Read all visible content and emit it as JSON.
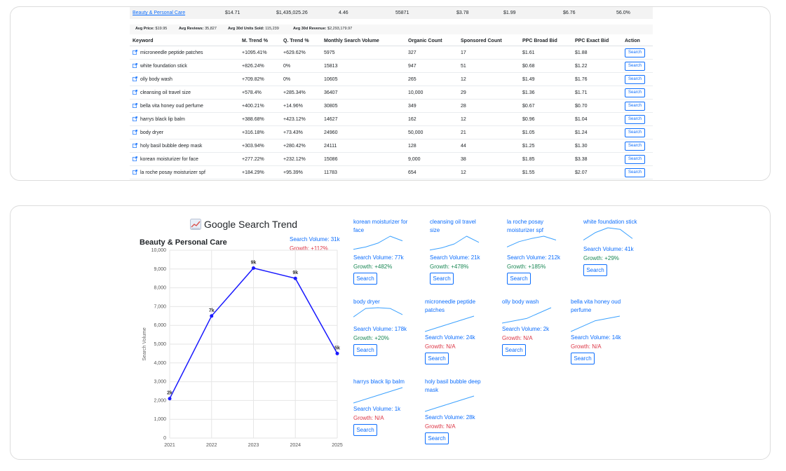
{
  "category_row": {
    "name": "Beauty & Personal Care",
    "price": "$14.71",
    "revenue": "$1,435,025.26",
    "rating": "4.46",
    "units": "55871",
    "val1": "$3.78",
    "val2": "$1.99",
    "val3": "$6.76",
    "pct": "56.0%"
  },
  "averages": {
    "price_label": "Avg Price:",
    "price": "$19.95",
    "reviews_label": "Avg Reviews:",
    "reviews": "35,827",
    "units_label": "Avg 30d Units Sold:",
    "units": "115,239",
    "revenue_label": "Avg 30d Revenue:",
    "revenue": "$2,293,179.97"
  },
  "table": {
    "headers": [
      "Keyword",
      "M. Trend %",
      "Q. Trend %",
      "Monthly Search Volume",
      "Organic Count",
      "Sponsored Count",
      "PPC Broad Bid",
      "PPC Exact Bid",
      "Action"
    ],
    "rows": [
      {
        "keyword": "microneedle peptide patches",
        "m": "+1095.41%",
        "q": "+629.62%",
        "msv": "5975",
        "org": "327",
        "sp": "17",
        "broad": "$1.61",
        "exact": "$1.88",
        "action": "Search"
      },
      {
        "keyword": "white foundation stick",
        "m": "+826.24%",
        "q": "0%",
        "msv": "15813",
        "org": "947",
        "sp": "51",
        "broad": "$0.68",
        "exact": "$1.22",
        "action": "Search"
      },
      {
        "keyword": "olly body wash",
        "m": "+709.82%",
        "q": "0%",
        "msv": "10605",
        "org": "265",
        "sp": "12",
        "broad": "$1.49",
        "exact": "$1.76",
        "action": "Search"
      },
      {
        "keyword": "cleansing oil travel size",
        "m": "+578.4%",
        "q": "+285.34%",
        "msv": "36407",
        "org": "10,000",
        "sp": "29",
        "broad": "$1.36",
        "exact": "$1.71",
        "action": "Search"
      },
      {
        "keyword": "bella vita honey oud perfume",
        "m": "+400.21%",
        "q": "+14.96%",
        "msv": "30805",
        "org": "349",
        "sp": "28",
        "broad": "$0.67",
        "exact": "$0.70",
        "action": "Search"
      },
      {
        "keyword": "harrys black lip balm",
        "m": "+388.68%",
        "q": "+423.12%",
        "msv": "14627",
        "org": "162",
        "sp": "12",
        "broad": "$0.96",
        "exact": "$1.04",
        "action": "Search"
      },
      {
        "keyword": "body dryer",
        "m": "+316.18%",
        "q": "+73.43%",
        "msv": "24960",
        "org": "50,000",
        "sp": "21",
        "broad": "$1.05",
        "exact": "$1.24",
        "action": "Search"
      },
      {
        "keyword": "holy basil bubble deep mask",
        "m": "+303.94%",
        "q": "+280.42%",
        "msv": "24111",
        "org": "128",
        "sp": "44",
        "broad": "$1.25",
        "exact": "$1.30",
        "action": "Search"
      },
      {
        "keyword": "korean moisturizer for face",
        "m": "+277.22%",
        "q": "+232.12%",
        "msv": "15086",
        "org": "9,000",
        "sp": "38",
        "broad": "$1.85",
        "exact": "$3.38",
        "action": "Search"
      },
      {
        "keyword": "la roche posay moisturizer spf",
        "m": "+184.29%",
        "q": "+95.39%",
        "msv": "11783",
        "org": "654",
        "sp": "12",
        "broad": "$1.55",
        "exact": "$2.07",
        "action": "Search"
      }
    ]
  },
  "trend": {
    "title": "Google Search Trend",
    "icon": "chart-increasing-icon",
    "category": "Beauty & Personal Care",
    "search_volume": "Search Volume: 31k",
    "growth": "Growth: +112%",
    "keywords": [
      {
        "name": "korean moisturizer for face",
        "sv": "Search Volume: 77k",
        "growth": "Growth: +482%",
        "positive": true,
        "action": "Search",
        "spark": [
          0.15,
          0.3,
          0.55,
          1.0,
          0.7
        ]
      },
      {
        "name": "cleansing oil travel size",
        "sv": "Search Volume: 21k",
        "growth": "Growth: +478%",
        "positive": true,
        "action": "Search",
        "spark": [
          0.1,
          0.25,
          0.5,
          1.0,
          0.6
        ]
      },
      {
        "name": "la roche posay moisturizer spf",
        "sv": "Search Volume: 212k",
        "growth": "Growth: +185%",
        "positive": true,
        "action": "Search",
        "spark": [
          0.3,
          0.65,
          0.85,
          1.0,
          0.75
        ]
      },
      {
        "name": "white foundation stick",
        "sv": "Search Volume: 41k",
        "growth": "Growth: +29%",
        "positive": true,
        "action": "Search",
        "spark": [
          0.2,
          0.7,
          1.0,
          0.9,
          0.3
        ]
      },
      {
        "name": "body dryer",
        "sv": "Search Volume: 178k",
        "growth": "Growth: +20%",
        "positive": true,
        "action": "Search",
        "spark": [
          0.4,
          0.95,
          1.0,
          0.95,
          0.55
        ]
      },
      {
        "name": "microneedle peptide patches",
        "sv": "Search Volume: 24k",
        "growth": "Growth: N/A",
        "positive": false,
        "action": "Search",
        "spark": [
          0.0,
          0.5,
          1.0
        ]
      },
      {
        "name": "olly body wash",
        "sv": "Search Volume: 2k",
        "growth": "Growth: N/A",
        "positive": false,
        "action": "Search",
        "spark": [
          0.0,
          0.3,
          1.0
        ]
      },
      {
        "name": "bella vita honey oud perfume",
        "sv": "Search Volume: 14k",
        "growth": "Growth: N/A",
        "positive": false,
        "action": "Search",
        "spark": [
          0.0,
          0.7,
          1.0
        ]
      },
      {
        "name": "harrys black lip balm",
        "sv": "Search Volume: 1k",
        "growth": "Growth: N/A",
        "positive": false,
        "action": "Search",
        "spark": [
          0.0,
          0.5,
          1.0
        ]
      },
      {
        "name": "holy basil bubble deep mask",
        "sv": "Search Volume: 28k",
        "growth": "Growth: N/A",
        "positive": false,
        "action": "Search",
        "spark": [
          0.0,
          0.5,
          1.0
        ]
      }
    ]
  },
  "chart_data": {
    "type": "line",
    "title": "Beauty & Personal Care",
    "x": [
      "2021",
      "2022",
      "2023",
      "2024",
      "2025"
    ],
    "series": [
      {
        "values": [
          2100,
          6500,
          9050,
          8500,
          4500
        ],
        "labels": [
          "2k",
          "7k",
          "9k",
          "9k",
          "5k"
        ],
        "color": "#1a1aff"
      }
    ],
    "ylabel": "Search Volume",
    "ylim": [
      0,
      10000
    ],
    "yticks": [
      "0",
      "1,000",
      "2,000",
      "3,000",
      "4,000",
      "5,000",
      "6,000",
      "7,000",
      "8,000",
      "9,000",
      "10,000"
    ],
    "grid": true
  }
}
